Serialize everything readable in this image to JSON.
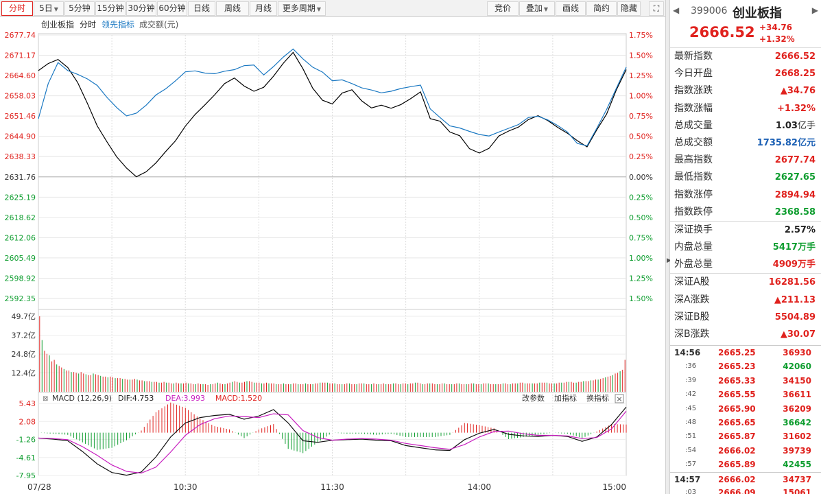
{
  "toolbar": {
    "buttons": [
      {
        "label": "分时",
        "active": true,
        "dropdown": false
      },
      {
        "label": "5日",
        "active": false,
        "dropdown": true
      },
      {
        "label": "5分钟",
        "active": false,
        "dropdown": false
      },
      {
        "label": "15分钟",
        "active": false,
        "dropdown": false
      },
      {
        "label": "30分钟",
        "active": false,
        "dropdown": false
      },
      {
        "label": "60分钟",
        "active": false,
        "dropdown": false
      },
      {
        "label": "日线",
        "active": false,
        "dropdown": false
      },
      {
        "label": "周线",
        "active": false,
        "dropdown": false
      },
      {
        "label": "月线",
        "active": false,
        "dropdown": false
      },
      {
        "label": "更多周期",
        "active": false,
        "dropdown": true
      }
    ],
    "right_buttons": [
      {
        "label": "竞价",
        "dropdown": false
      },
      {
        "label": "叠加",
        "dropdown": true
      },
      {
        "label": "画线",
        "dropdown": false
      },
      {
        "label": "简约",
        "dropdown": false
      },
      {
        "label": "隐藏",
        "dropdown": false
      }
    ]
  },
  "legend": {
    "index_name": "创业板指",
    "mode": "分时",
    "leading": "领先指标",
    "volume": "成交额(元)"
  },
  "macd_header": {
    "name": "MACD (12,26,9)",
    "dif": "DIF:4.753",
    "dea": "DEA:3.993",
    "macd": "MACD:1.520",
    "change_params": "改参数",
    "add_indicator": "加指标",
    "switch_indicator": "换指标"
  },
  "chart_data": {
    "type": "line",
    "price_axis": {
      "labels": [
        "2677.74",
        "2671.17",
        "2664.60",
        "2658.03",
        "2651.46",
        "2644.90",
        "2638.33",
        "2631.76",
        "2625.19",
        "2618.62",
        "2612.06",
        "2605.49",
        "2598.92",
        "2592.35"
      ],
      "pct_labels": [
        "1.75%",
        "1.50%",
        "1.25%",
        "1.00%",
        "0.75%",
        "0.50%",
        "0.25%",
        "0.00%",
        "0.25%",
        "0.50%",
        "0.75%",
        "1.00%",
        "1.25%",
        "1.50%"
      ],
      "ylim": [
        2592.35,
        2677.74
      ],
      "prev_close": 2631.76
    },
    "x_ticks": [
      "07/28",
      "10:30",
      "11:30",
      "14:00",
      "15:00"
    ],
    "series": [
      {
        "name": "创业板指",
        "color": "#000000",
        "x": [
          0,
          4,
          8,
          12,
          16,
          20,
          24,
          28,
          32,
          36,
          40,
          44,
          48,
          52,
          56,
          60,
          64,
          68,
          72,
          76,
          80,
          84,
          88,
          92,
          96,
          100,
          104,
          108,
          112,
          116,
          120,
          124,
          128,
          132,
          136,
          140,
          144,
          148,
          152,
          156,
          160,
          164,
          168,
          172,
          176,
          180,
          184,
          188,
          192,
          196,
          200,
          204,
          208,
          212,
          216,
          220,
          224,
          228,
          232,
          236,
          240
        ],
        "values": [
          2666.2,
          2668.5,
          2669.8,
          2667.2,
          2662.4,
          2655.6,
          2648.3,
          2643.1,
          2638.2,
          2634.6,
          2631.8,
          2633.4,
          2636.3,
          2640.0,
          2643.5,
          2648.2,
          2652.0,
          2655.1,
          2658.4,
          2662.0,
          2663.8,
          2661.2,
          2659.5,
          2660.8,
          2664.4,
          2668.6,
          2672.1,
          2666.8,
          2660.5,
          2656.6,
          2655.4,
          2658.9,
          2660.0,
          2656.4,
          2654.1,
          2655.0,
          2654.0,
          2655.2,
          2657.1,
          2659.3,
          2650.6,
          2649.8,
          2646.3,
          2645.1,
          2640.9,
          2639.5,
          2641.0,
          2645.0,
          2646.6,
          2647.9,
          2650.3,
          2651.6,
          2650.0,
          2647.8,
          2645.9,
          2643.5,
          2641.5,
          2647.0,
          2652.1,
          2660.0,
          2666.5
        ]
      },
      {
        "name": "领先指标",
        "color": "#1a78c2",
        "x": [
          0,
          4,
          8,
          12,
          16,
          20,
          24,
          28,
          32,
          36,
          40,
          44,
          48,
          52,
          56,
          60,
          64,
          68,
          72,
          76,
          80,
          84,
          88,
          92,
          96,
          100,
          104,
          108,
          112,
          116,
          120,
          124,
          128,
          132,
          136,
          140,
          144,
          148,
          152,
          156,
          160,
          164,
          168,
          172,
          176,
          180,
          184,
          188,
          192,
          196,
          200,
          204,
          208,
          212,
          216,
          220,
          224,
          228,
          232,
          236,
          240
        ],
        "values": [
          2650.6,
          2662.0,
          2668.8,
          2666.2,
          2665.0,
          2663.5,
          2661.4,
          2657.5,
          2654.2,
          2651.5,
          2652.4,
          2655.0,
          2658.3,
          2660.3,
          2662.9,
          2665.8,
          2666.1,
          2665.4,
          2665.2,
          2666.0,
          2666.5,
          2667.8,
          2668.0,
          2664.8,
          2667.5,
          2670.6,
          2673.2,
          2670.0,
          2667.3,
          2665.7,
          2662.9,
          2663.2,
          2662.0,
          2660.6,
          2659.9,
          2659.0,
          2659.5,
          2660.4,
          2661.0,
          2661.5,
          2653.8,
          2651.0,
          2648.3,
          2647.6,
          2646.5,
          2645.5,
          2645.0,
          2646.3,
          2647.5,
          2648.7,
          2651.0,
          2651.4,
          2650.2,
          2648.4,
          2646.3,
          2642.6,
          2641.8,
          2647.5,
          2653.6,
          2660.5,
          2667.3
        ]
      }
    ],
    "volume": {
      "ylabels": [
        "49.7亿",
        "37.2亿",
        "24.8亿",
        "12.4亿"
      ],
      "ylim": [
        0,
        49.7
      ],
      "values": [
        49.7,
        34.0,
        27.0,
        25.0,
        24.0,
        20.0,
        21.0,
        18.0,
        17.0,
        16.0,
        15.0,
        14.0,
        14.0,
        13.0,
        13.0,
        12.5,
        12.0,
        13.0,
        12.0,
        11.5,
        11.0,
        11.0,
        12.0,
        11.5,
        11.0,
        10.5,
        10.0,
        10.0,
        9.5,
        10.0,
        9.5,
        9.0,
        9.0,
        9.0,
        8.5,
        8.5,
        8.0,
        8.0,
        8.0,
        8.5,
        8.0,
        7.5,
        7.5,
        7.0,
        7.0,
        7.0,
        6.5,
        6.5,
        6.5,
        6.0,
        6.0,
        6.5,
        6.0,
        6.0,
        5.5,
        5.5,
        6.0,
        5.5,
        5.5,
        5.5,
        6.0,
        5.5,
        5.5,
        5.0,
        5.0,
        5.5,
        5.0,
        5.0,
        5.0,
        4.5,
        5.0,
        5.0,
        5.5,
        6.0,
        5.5,
        5.0,
        5.0,
        5.5,
        6.0,
        6.5,
        7.0,
        6.5,
        6.0,
        6.0,
        6.5,
        7.0,
        7.0,
        6.5,
        6.0,
        6.0,
        6.0,
        5.5,
        5.5,
        6.0,
        5.5,
        5.5,
        5.5,
        5.0,
        5.0,
        5.0,
        5.5,
        5.0,
        5.0,
        5.0,
        5.5,
        5.5,
        5.0,
        5.0,
        5.0,
        5.5,
        5.0,
        5.0,
        5.0,
        5.5,
        5.5,
        6.0,
        6.0,
        6.0,
        6.0,
        5.5,
        5.5,
        5.5,
        5.0,
        5.0,
        5.0,
        5.0,
        5.5,
        5.5,
        5.0,
        5.0,
        5.0,
        5.5,
        5.5,
        5.5,
        5.0,
        5.0,
        5.0,
        5.5,
        5.0,
        5.0,
        5.0,
        5.5,
        5.0,
        5.0,
        5.0,
        5.5,
        5.5,
        5.0,
        5.0,
        5.5,
        5.5,
        5.0,
        5.5,
        5.5,
        6.0,
        6.0,
        5.5,
        5.0,
        5.0,
        5.5,
        5.5,
        5.5,
        5.0,
        5.0,
        5.0,
        5.5,
        5.5,
        5.0,
        5.0,
        5.0,
        5.0,
        5.5,
        5.5,
        5.0,
        5.0,
        5.0,
        5.0,
        5.5,
        5.5,
        5.0,
        5.0,
        5.0,
        5.5,
        5.5,
        5.5,
        5.0,
        5.0,
        5.0,
        5.0,
        5.0,
        5.5,
        5.5,
        5.0,
        5.0,
        5.5,
        5.5,
        5.5,
        6.0,
        6.0,
        5.5,
        5.5,
        5.5,
        5.5,
        5.5,
        5.5,
        6.0,
        6.0,
        6.0,
        6.0,
        5.5,
        5.5,
        5.5,
        5.5,
        6.0,
        6.0,
        6.0,
        6.5,
        6.5,
        6.5,
        6.0,
        6.0,
        6.5,
        6.5,
        7.0,
        7.0,
        7.0,
        7.5,
        7.5,
        8.0,
        8.0,
        8.5,
        9.0,
        9.5,
        10.0,
        10.5,
        11.0,
        12.0,
        12.5,
        13.5,
        14.5,
        21.0
      ]
    },
    "macd": {
      "ylabels": [
        "5.43",
        "2.08",
        "-1.26",
        "-4.61",
        "-7.95"
      ],
      "ylim": [
        -7.95,
        5.43
      ],
      "x": [
        0,
        6,
        12,
        18,
        24,
        30,
        36,
        42,
        48,
        54,
        60,
        66,
        72,
        78,
        84,
        90,
        96,
        102,
        108,
        114,
        120,
        126,
        132,
        138,
        144,
        150,
        156,
        162,
        168,
        174,
        180,
        186,
        192,
        198,
        204,
        210,
        216,
        222,
        228,
        234,
        240
      ],
      "dif": [
        -1.0,
        -1.2,
        -1.5,
        -3.5,
        -5.8,
        -7.4,
        -7.9,
        -7.3,
        -4.5,
        -0.8,
        1.8,
        2.8,
        3.2,
        3.4,
        2.5,
        3.1,
        4.3,
        1.8,
        -1.5,
        -1.8,
        -1.4,
        -1.3,
        -1.2,
        -1.4,
        -1.5,
        -2.4,
        -2.8,
        -3.2,
        -3.3,
        -1.3,
        -0.1,
        0.6,
        -0.3,
        -0.6,
        -0.7,
        -0.5,
        -0.7,
        -1.6,
        -0.8,
        1.5,
        4.75
      ],
      "dea": [
        -1.0,
        -1.1,
        -1.3,
        -2.6,
        -4.2,
        -6.0,
        -7.2,
        -7.5,
        -6.4,
        -3.6,
        -0.5,
        1.5,
        2.6,
        3.1,
        3.0,
        2.8,
        3.5,
        3.3,
        0.4,
        -0.9,
        -1.4,
        -1.2,
        -1.1,
        -1.2,
        -1.4,
        -2.0,
        -2.4,
        -2.8,
        -3.1,
        -2.2,
        -0.8,
        0.2,
        0.3,
        -0.2,
        -0.5,
        -0.5,
        -0.6,
        -1.1,
        -0.9,
        0.7,
        3.99
      ],
      "hist": [
        0.0,
        -0.2,
        -0.4,
        -1.8,
        -3.2,
        -2.8,
        -1.4,
        0.4,
        3.8,
        5.6,
        4.6,
        2.6,
        1.2,
        0.6,
        -1.0,
        0.6,
        1.6,
        -3.0,
        -3.8,
        -1.8,
        0.0,
        -0.2,
        -0.2,
        -0.4,
        -0.2,
        -0.8,
        -0.8,
        -0.8,
        -0.4,
        1.8,
        1.4,
        0.8,
        -1.2,
        -0.8,
        -0.4,
        0.0,
        -0.2,
        -1.0,
        0.2,
        1.6,
        1.52
      ]
    }
  },
  "panel": {
    "code": "399006",
    "name": "创业板指",
    "last": "2666.52",
    "chg_abs": "+34.76",
    "chg_pct": "+1.32%",
    "stats1": [
      {
        "label": "最新指数",
        "value": "2666.52",
        "unit": "",
        "color": "red"
      },
      {
        "label": "今日开盘",
        "value": "2668.25",
        "unit": "",
        "color": "red"
      },
      {
        "label": "指数涨跌",
        "value": "▲34.76",
        "unit": "",
        "color": "red"
      },
      {
        "label": "指数涨幅",
        "value": "+1.32%",
        "unit": "",
        "color": "red"
      },
      {
        "label": "总成交量",
        "value": "1.03",
        "unit": "亿手",
        "color": "black"
      },
      {
        "label": "总成交额",
        "value": "1735.82",
        "unit": "亿元",
        "color": "blue"
      },
      {
        "label": "最高指数",
        "value": "2677.74",
        "unit": "",
        "color": "red"
      },
      {
        "label": "最低指数",
        "value": "2627.65",
        "unit": "",
        "color": "green"
      },
      {
        "label": "指数涨停",
        "value": "2894.94",
        "unit": "",
        "color": "red"
      },
      {
        "label": "指数跌停",
        "value": "2368.58",
        "unit": "",
        "color": "green"
      }
    ],
    "stats2": [
      {
        "label": "深证换手",
        "value": "2.57%",
        "unit": "",
        "color": "black"
      },
      {
        "label": "内盘总量",
        "value": "5417",
        "unit": "万手",
        "color": "green"
      },
      {
        "label": "外盘总量",
        "value": "4909",
        "unit": "万手",
        "color": "red"
      }
    ],
    "stats3": [
      {
        "label": "深证A股",
        "value": "16281.56",
        "unit": "",
        "color": "red"
      },
      {
        "label": "深A涨跌",
        "value": "▲211.13",
        "unit": "",
        "color": "red"
      },
      {
        "label": "深证B股",
        "value": "5504.89",
        "unit": "",
        "color": "red"
      },
      {
        "label": "深B涨跌",
        "value": "▲30.07",
        "unit": "",
        "color": "red"
      }
    ],
    "ticks": [
      {
        "time": "14:56",
        "main": true,
        "price": "2665.25",
        "vol": "36930",
        "vol_color": "red"
      },
      {
        "time": ":36",
        "main": false,
        "price": "2665.23",
        "vol": "42060",
        "vol_color": "green"
      },
      {
        "time": ":39",
        "main": false,
        "price": "2665.33",
        "vol": "34150",
        "vol_color": "red"
      },
      {
        "time": ":42",
        "main": false,
        "price": "2665.55",
        "vol": "36611",
        "vol_color": "red"
      },
      {
        "time": ":45",
        "main": false,
        "price": "2665.90",
        "vol": "36209",
        "vol_color": "red"
      },
      {
        "time": ":48",
        "main": false,
        "price": "2665.65",
        "vol": "36642",
        "vol_color": "green"
      },
      {
        "time": ":51",
        "main": false,
        "price": "2665.87",
        "vol": "31602",
        "vol_color": "red"
      },
      {
        "time": ":54",
        "main": false,
        "price": "2666.02",
        "vol": "39739",
        "vol_color": "red"
      },
      {
        "time": ":57",
        "main": false,
        "price": "2665.89",
        "vol": "42455",
        "vol_color": "green"
      },
      {
        "time": "14:57",
        "main": true,
        "price": "2666.02",
        "vol": "34737",
        "vol_color": "red"
      },
      {
        "time": ":03",
        "main": false,
        "price": "2666.09",
        "vol": "15061",
        "vol_color": "red"
      }
    ]
  }
}
